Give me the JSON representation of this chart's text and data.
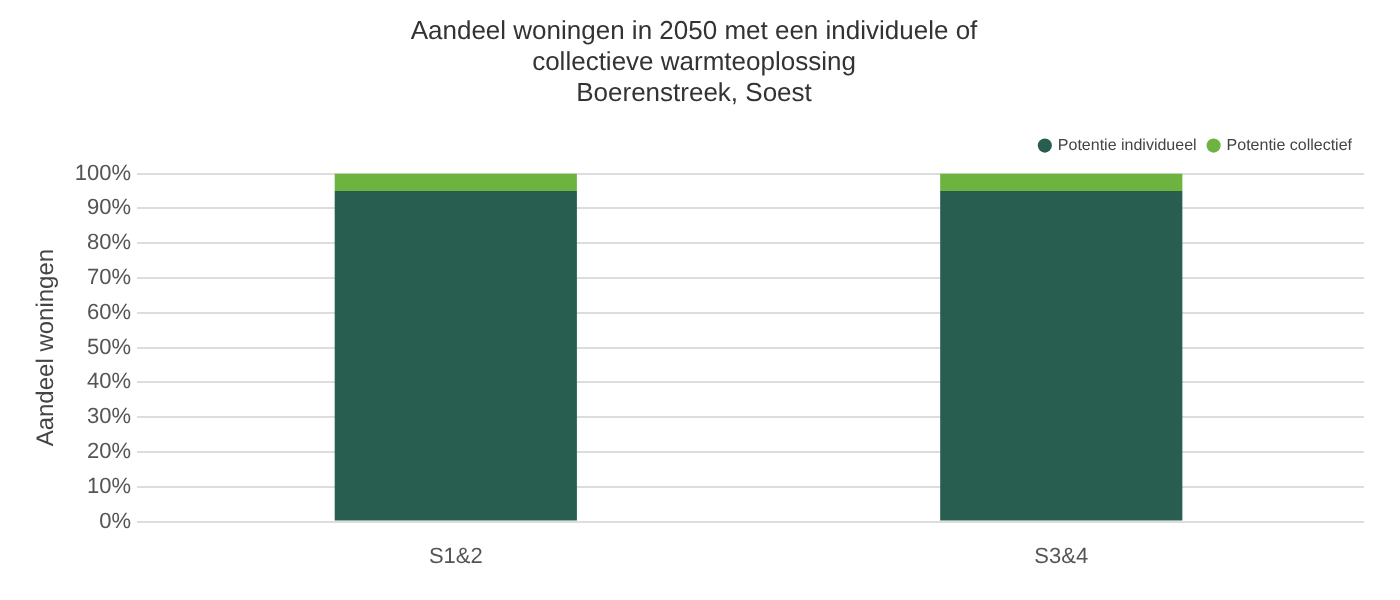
{
  "chart_data": {
    "type": "bar",
    "title": "Aandeel woningen in 2050 met een individuele of collectieve warmteoplossing",
    "subtitle": "Boerenstreek, Soest",
    "ylabel": "Aandeel woningen",
    "categories": [
      "S1&2",
      "S3&4"
    ],
    "stacked": true,
    "series": [
      {
        "name": "Potentie individueel",
        "color": "#285e50",
        "values": [
          95,
          95
        ]
      },
      {
        "name": "Potentie collectief",
        "color": "#6db33f",
        "values": [
          5,
          5
        ]
      }
    ],
    "ylim": [
      0,
      100
    ],
    "yticks": [
      {
        "value": 0,
        "label": "0%"
      },
      {
        "value": 10,
        "label": "10%"
      },
      {
        "value": 20,
        "label": "20%"
      },
      {
        "value": 30,
        "label": "30%"
      },
      {
        "value": 40,
        "label": "40%"
      },
      {
        "value": 50,
        "label": "50%"
      },
      {
        "value": 60,
        "label": "60%"
      },
      {
        "value": 70,
        "label": "70%"
      },
      {
        "value": 80,
        "label": "80%"
      },
      {
        "value": 90,
        "label": "90%"
      },
      {
        "value": 100,
        "label": "100%"
      }
    ],
    "grid": "y",
    "legend": "top right"
  }
}
